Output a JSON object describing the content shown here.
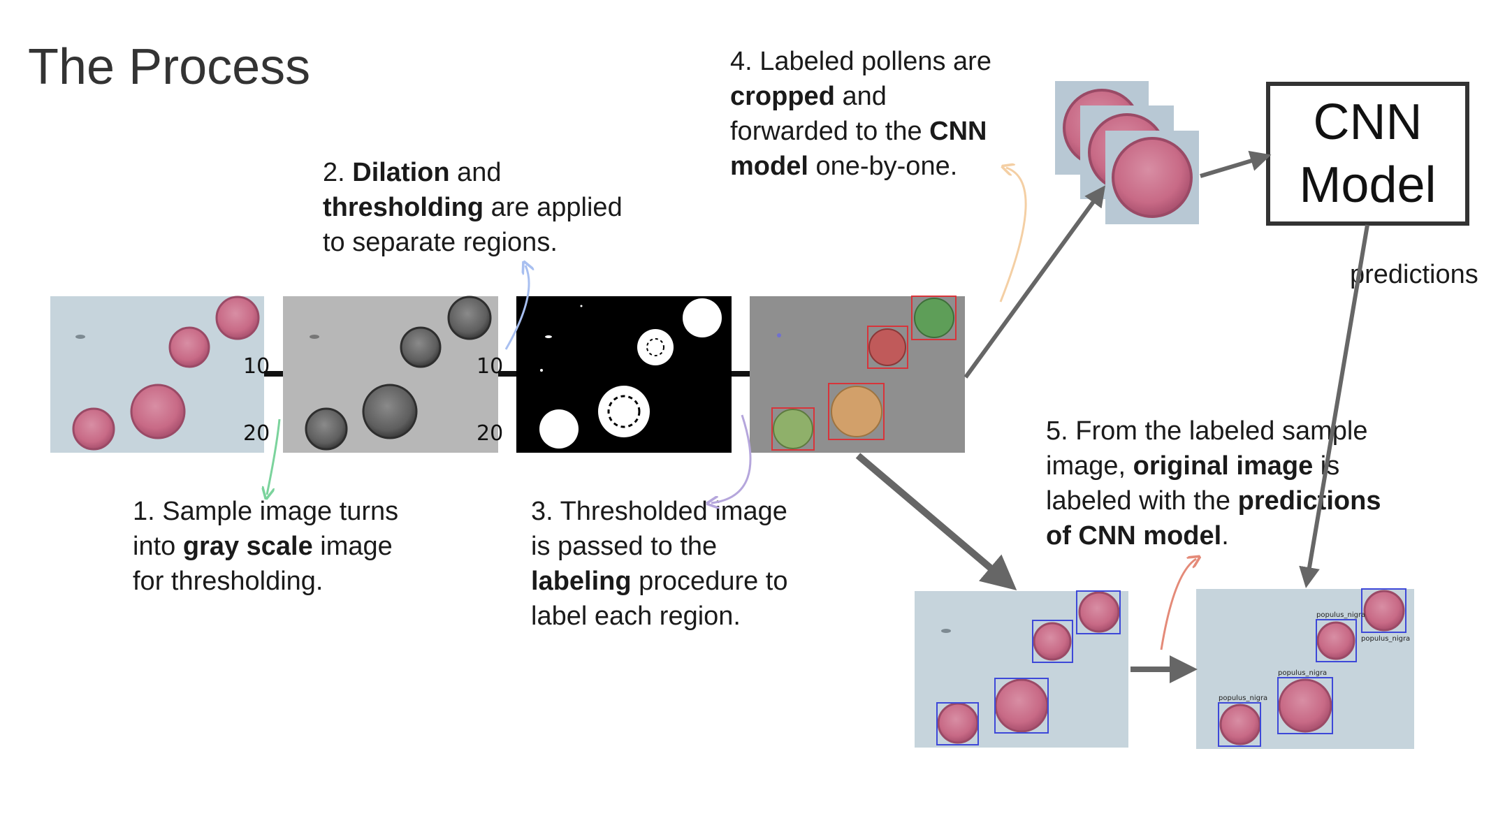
{
  "title": "The Process",
  "steps": {
    "s1": [
      "1. Sample image turns",
      "into ",
      "gray scale",
      " image",
      "for thresholding."
    ],
    "s2": [
      "2. ",
      "Dilation",
      " and",
      "thresholding",
      " are applied",
      "to separate regions."
    ],
    "s3": [
      "3. Thresholded image",
      "is passed to the",
      "labeling",
      " procedure to",
      "label each region."
    ],
    "s4": [
      "4. Labeled pollens are",
      "cropped",
      " and",
      "forwarded to the ",
      "CNN",
      "model",
      " one-by-one."
    ],
    "s5": [
      "5. From the labeled sample",
      "image, ",
      "original image",
      " is",
      "labeled with the ",
      "predictions",
      "of CNN model",
      "."
    ]
  },
  "cnn": {
    "line1": "CNN",
    "line2": "Model"
  },
  "predictions_label": "predictions",
  "axis": {
    "t10a": "10",
    "t20a": "20",
    "t10b": "10",
    "t20b": "20"
  },
  "box_label": "populus_nigra",
  "colors": {
    "micro_bg": "#c6d4dc",
    "pollen": "#c86a86",
    "gray_bg": "#b7b7b7",
    "pollen_dark": "#5e5e5e",
    "arrow": "#666666",
    "green_arrow": "#7bd39c",
    "blue_arrow": "#a8bff0",
    "purple_arrow": "#b5a6dc",
    "orange_arrow": "#f4cfa4",
    "red_arrow": "#e48a78",
    "bbox_red": "#d8343a",
    "bbox_blue": "#3d48d8"
  }
}
